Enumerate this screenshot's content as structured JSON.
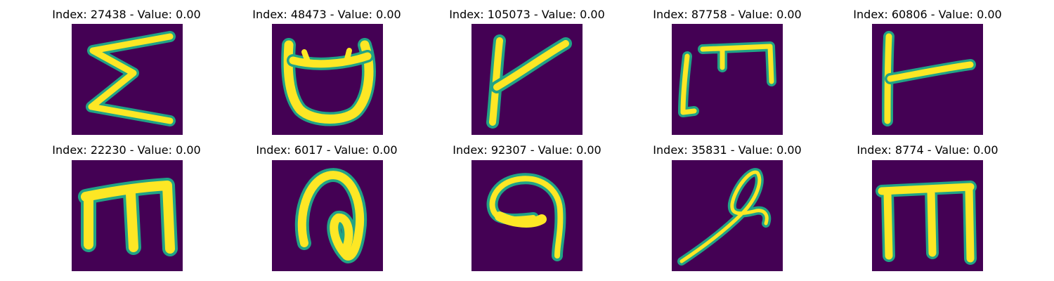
{
  "colors": {
    "background": "#440154",
    "stroke_core": "#fde725",
    "stroke_edge": "#21a386"
  },
  "panels": [
    {
      "title": "Index: 27438 - Value: 0.00",
      "glyph": "sigma-like"
    },
    {
      "title": "Index: 48473 - Value: 0.00",
      "glyph": "cup-like"
    },
    {
      "title": "Index: 105073 - Value: 0.00",
      "glyph": "k-like"
    },
    {
      "title": "Index: 87758 - Value: 0.00",
      "glyph": "bracket-m-like"
    },
    {
      "title": "Index: 60806 - Value: 0.00",
      "glyph": "t-rotated-like"
    },
    {
      "title": "Index: 22230 - Value: 0.00",
      "glyph": "m-like"
    },
    {
      "title": "Index: 6017 - Value: 0.00",
      "glyph": "loop-like"
    },
    {
      "title": "Index: 92307 - Value: 0.00",
      "glyph": "nine-like"
    },
    {
      "title": "Index: 35831 - Value: 0.00",
      "glyph": "flourish-like"
    },
    {
      "title": "Index: 8774 - Value: 0.00",
      "glyph": "m-like"
    }
  ]
}
